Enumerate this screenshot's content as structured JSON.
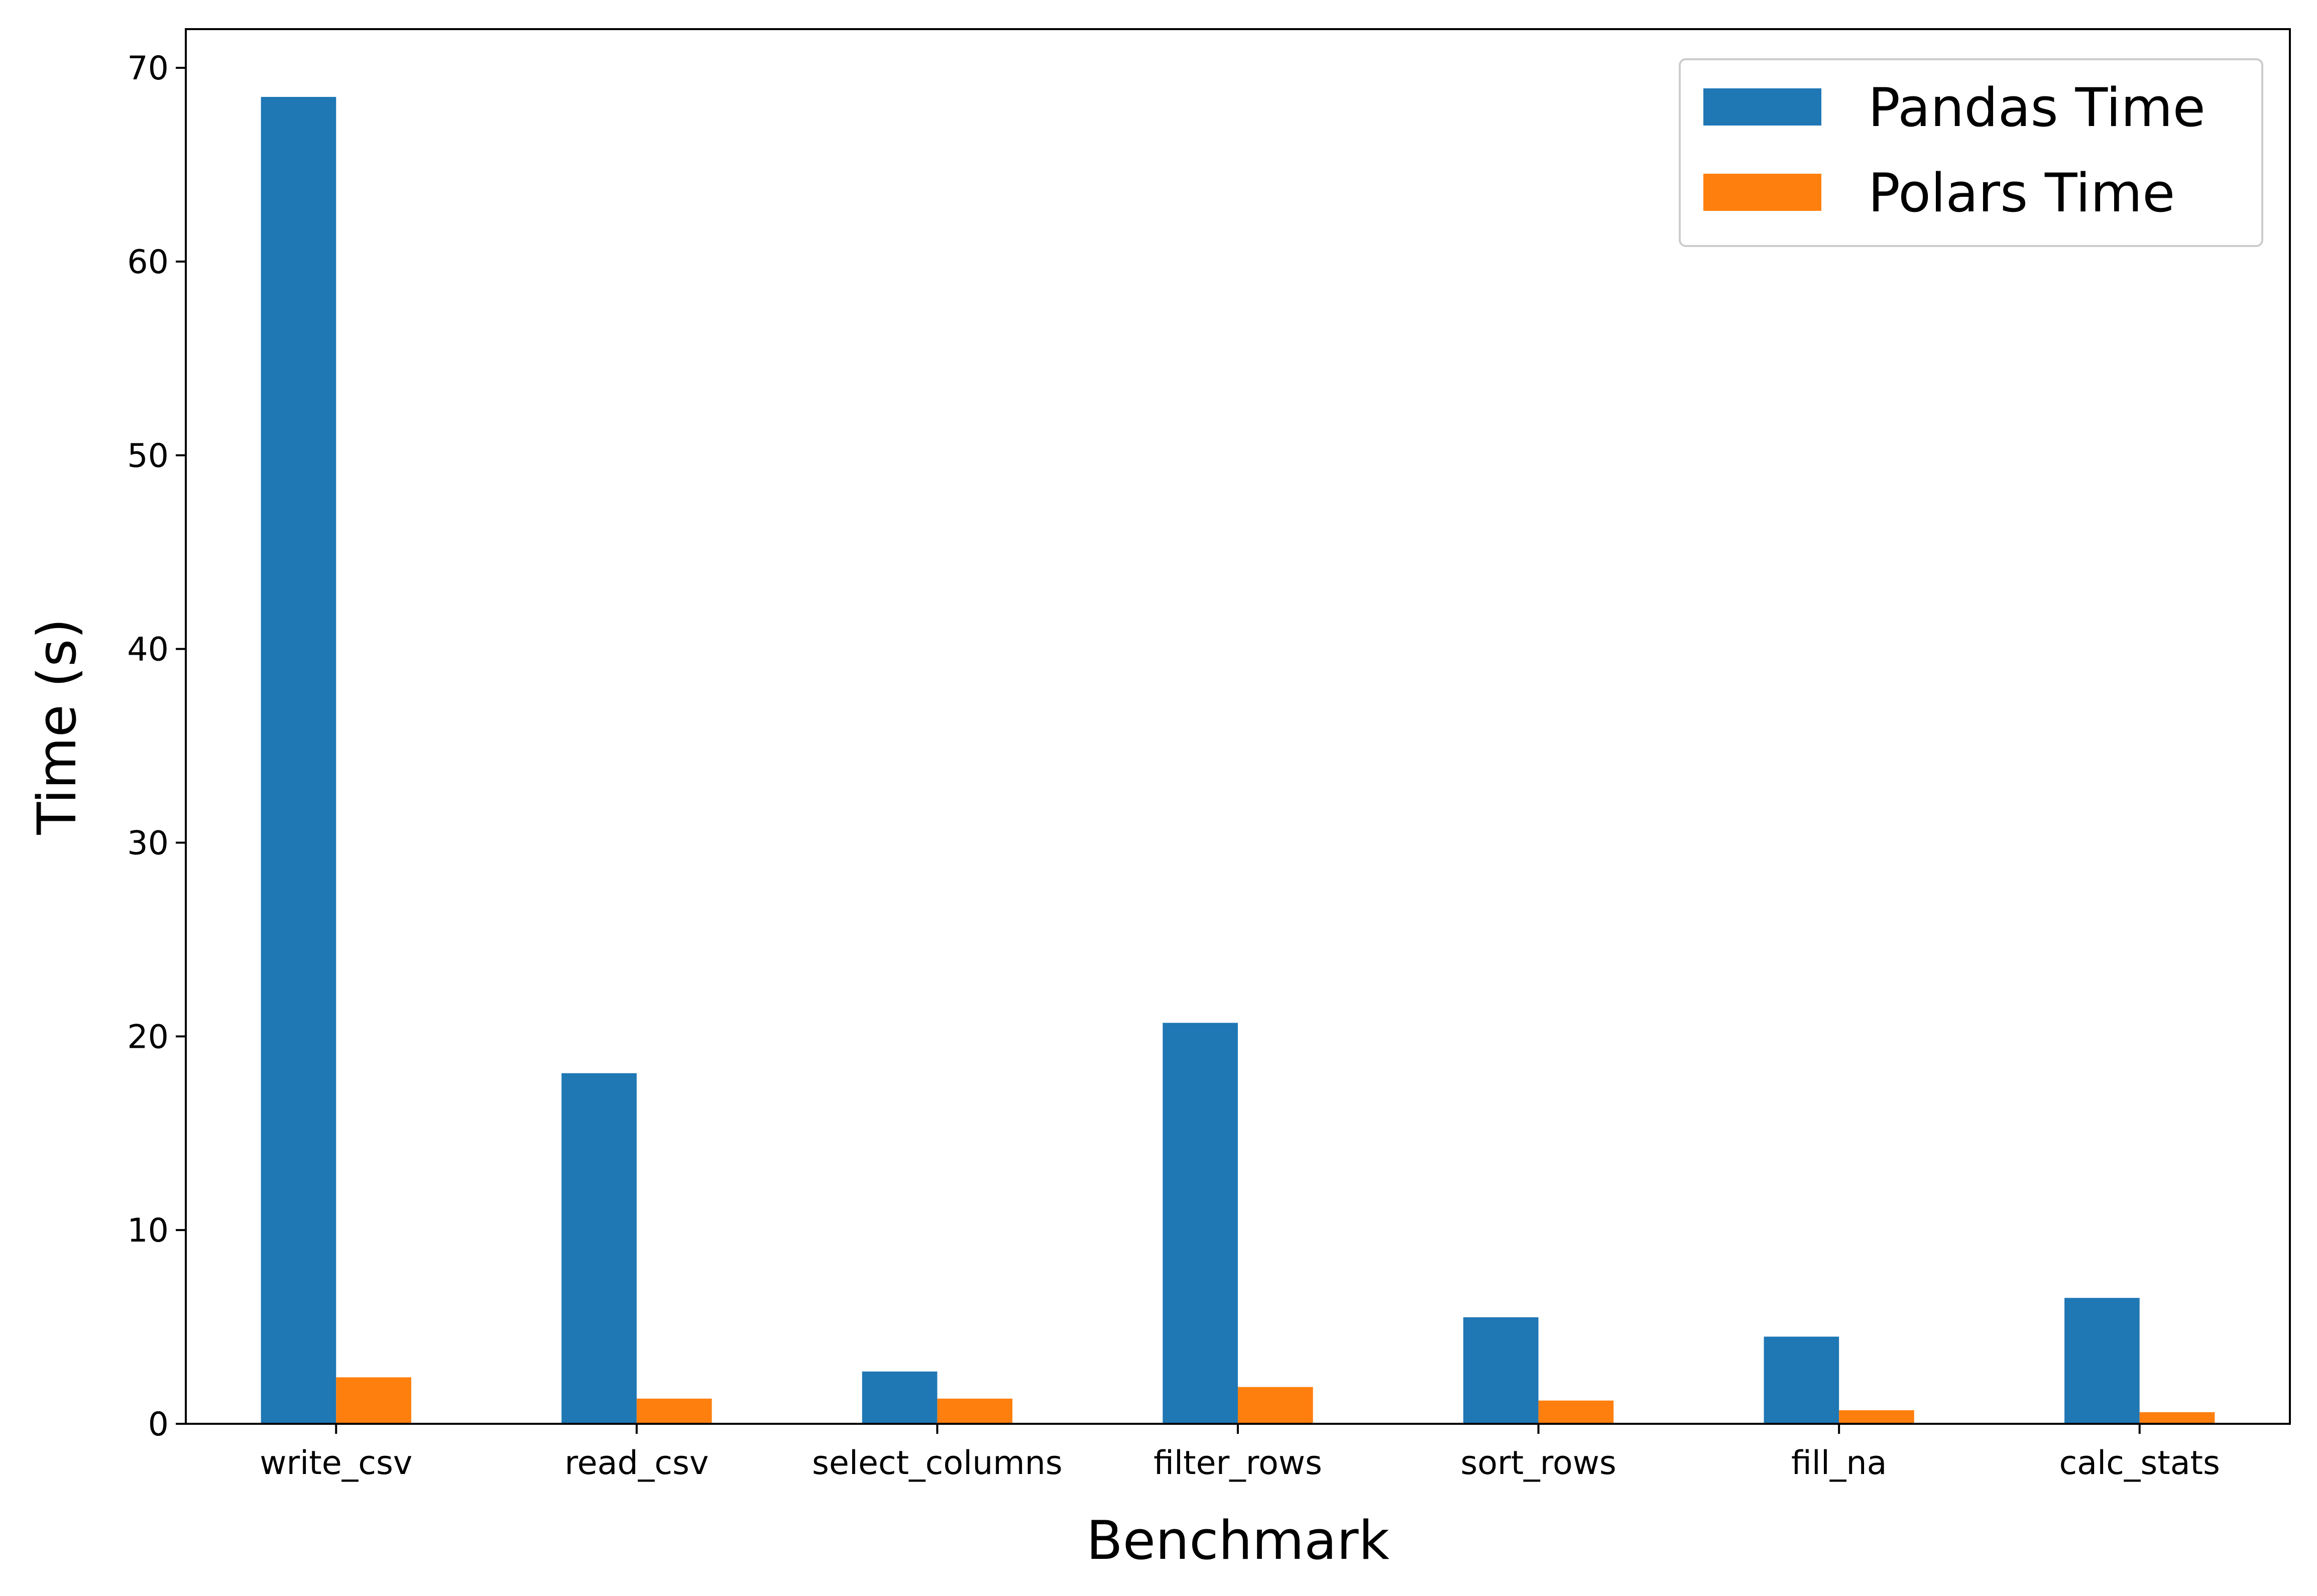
{
  "chart_data": {
    "type": "bar",
    "title": "",
    "xlabel": "Benchmark",
    "ylabel": "Time (s)",
    "categories": [
      "write_csv",
      "read_csv",
      "select_columns",
      "filter_rows",
      "sort_rows",
      "fill_na",
      "calc_stats"
    ],
    "series": [
      {
        "name": "Pandas Time",
        "color": "#1f77b4",
        "values": [
          68.5,
          18.1,
          2.7,
          20.7,
          5.5,
          4.5,
          6.5
        ]
      },
      {
        "name": "Polars Time",
        "color": "#ff7f0e",
        "values": [
          2.4,
          1.3,
          1.3,
          1.9,
          1.2,
          0.7,
          0.6
        ]
      }
    ],
    "ylim": [
      0,
      72
    ],
    "yticks": [
      0,
      10,
      20,
      30,
      40,
      50,
      60,
      70
    ],
    "grid": false,
    "legend_position": "top-right"
  }
}
